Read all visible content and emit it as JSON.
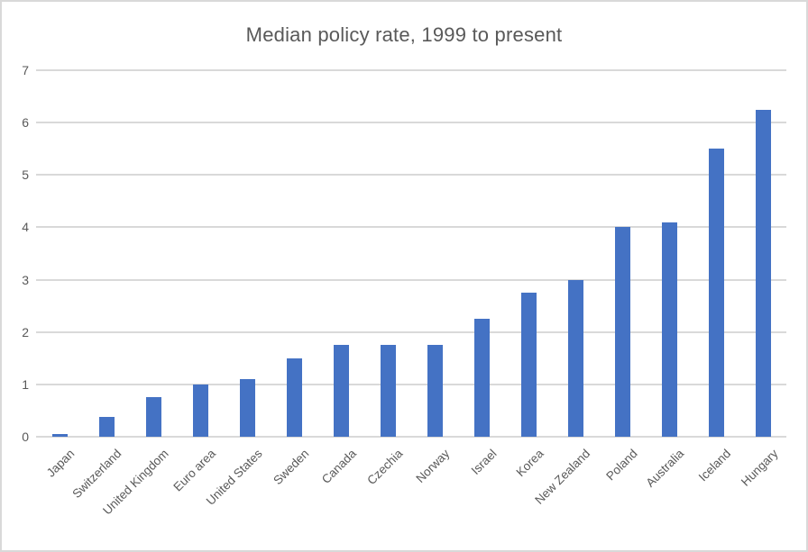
{
  "title": "Median policy rate, 1999 to present",
  "colors": {
    "bar": "#4472c4",
    "gridline": "#d9d9d9",
    "text": "#595959",
    "border": "#d9d9d9",
    "background": "#ffffff"
  },
  "chart_data": {
    "type": "bar",
    "title": "Median policy rate, 1999 to present",
    "categories": [
      "Japan",
      "Switzerland",
      "United Kingdom",
      "Euro area",
      "United States",
      "Sweden",
      "Canada",
      "Czechia",
      "Norway",
      "Israel",
      "Korea",
      "New Zealand",
      "Poland",
      "Australia",
      "Iceland",
      "Hungary"
    ],
    "values": [
      0.05,
      0.375,
      0.75,
      1.0,
      1.1,
      1.5,
      1.75,
      1.75,
      1.75,
      2.25,
      2.75,
      3.0,
      4.0,
      4.1,
      5.5,
      6.25
    ],
    "xlabel": "",
    "ylabel": "",
    "ylim": [
      0,
      7
    ],
    "yticks": [
      0,
      1,
      2,
      3,
      4,
      5,
      6,
      7
    ],
    "grid": true,
    "legend": false,
    "x_label_rotation_deg": 45
  }
}
